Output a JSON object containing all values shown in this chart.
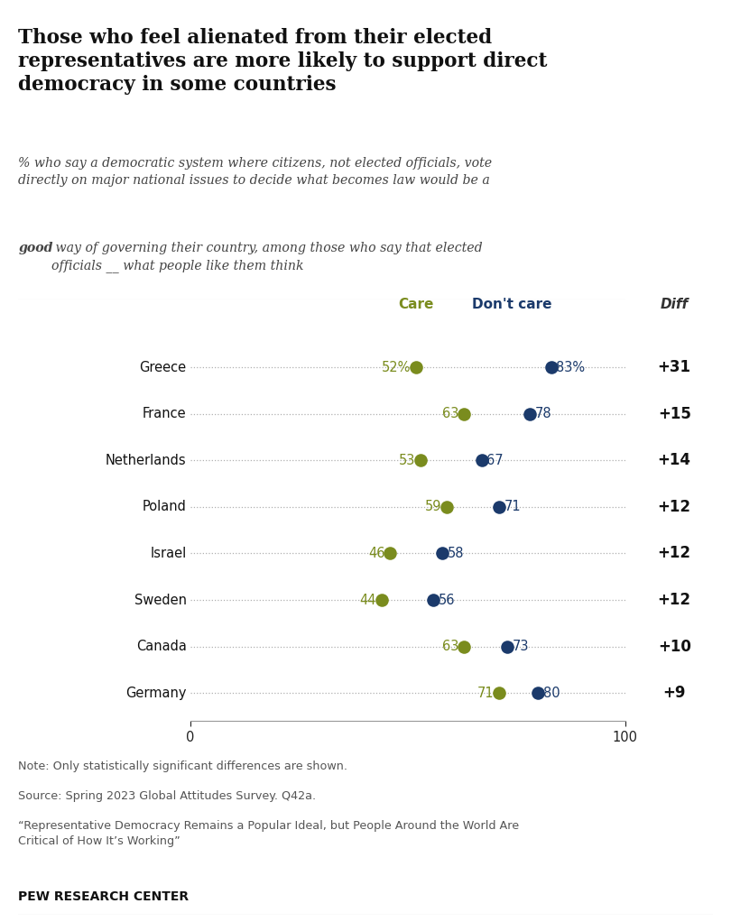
{
  "title": "Those who feel alienated from their elected\nrepresentatives are more likely to support direct\ndemocracy in some countries",
  "subtitle1": "% who say a democratic system where citizens, not elected officials, vote\ndirectly on major national issues to decide what becomes law would be a",
  "subtitle2_bold": "good",
  "subtitle3": " way of governing their country, among those who say that elected\nofficials __ what people like them think",
  "countries": [
    "Greece",
    "France",
    "Netherlands",
    "Poland",
    "Israel",
    "Sweden",
    "Canada",
    "Germany"
  ],
  "care_values": [
    52,
    63,
    53,
    59,
    46,
    44,
    63,
    71
  ],
  "dont_care_values": [
    83,
    78,
    67,
    71,
    58,
    56,
    73,
    80
  ],
  "care_pct_label": [
    true,
    false,
    false,
    false,
    false,
    false,
    false,
    false
  ],
  "dont_care_pct_label": [
    true,
    false,
    false,
    false,
    false,
    false,
    false,
    false
  ],
  "diff_values": [
    "+31",
    "+15",
    "+14",
    "+12",
    "+12",
    "+12",
    "+10",
    "+9"
  ],
  "care_color": "#7a8c1e",
  "dont_care_color": "#1b3a6b",
  "care_label": "Care",
  "dont_care_label": "Don't care",
  "diff_label": "Diff",
  "note_line1": "Note: Only statistically significant differences are shown.",
  "note_line2": "Source: Spring 2023 Global Attitudes Survey. Q42a.",
  "note_line3": "“Representative Democracy Remains a Popular Ideal, but People Around the World Are\nCritical of How It’s Working”",
  "source_label": "PEW RESEARCH CENTER",
  "background_color": "#ffffff",
  "diff_panel_color": "#ede8dc",
  "dotted_line_color": "#b0b0b0",
  "title_color": "#111111",
  "subtitle_color": "#444444",
  "note_color": "#555555",
  "country_label_color": "#111111"
}
